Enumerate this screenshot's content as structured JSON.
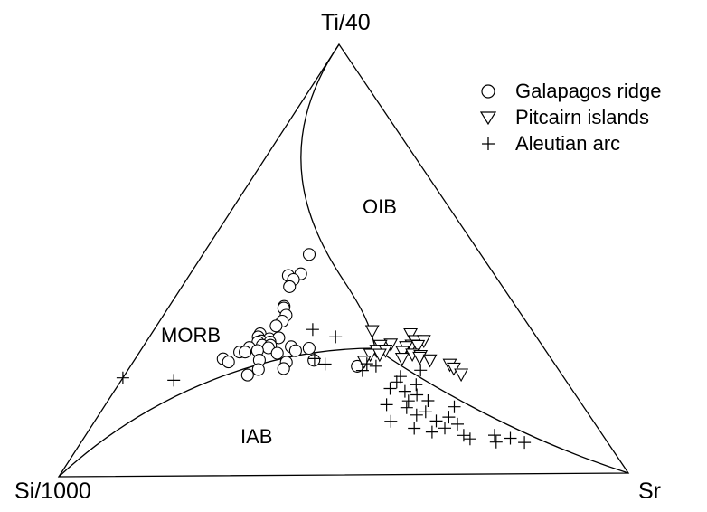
{
  "chart_data": {
    "type": "scatter",
    "subtype": "ternary",
    "vertices": {
      "top": "Ti/40",
      "bottom_left": "Si/1000",
      "bottom_right": "Sr"
    },
    "regions": [
      "OIB",
      "MORB",
      "IAB"
    ],
    "legend_position": "top-right",
    "grid": false,
    "series": [
      {
        "name": "Galapagos ridge",
        "marker": "circle",
        "points": [
          {
            "ti": 0.82,
            "si": 0.48,
            "sr": 0.3
          },
          {
            "ti": 0.77,
            "si": 0.6,
            "sr": 0.29
          },
          {
            "ti": 0.72,
            "si": 0.52,
            "sr": 0.3
          },
          {
            "ti": 0.7,
            "si": 0.55,
            "sr": 0.29
          },
          {
            "ti": 0.67,
            "si": 0.57,
            "sr": 0.29
          },
          {
            "ti": 0.6,
            "si": 0.62,
            "sr": 0.31
          },
          {
            "ti": 0.59,
            "si": 0.62,
            "sr": 0.31
          },
          {
            "ti": 0.55,
            "si": 0.61,
            "sr": 0.32
          },
          {
            "ti": 0.53,
            "si": 0.63,
            "sr": 0.32
          },
          {
            "ti": 0.51,
            "si": 0.65,
            "sr": 0.31
          },
          {
            "ti": 0.48,
            "si": 0.7,
            "sr": 0.28
          },
          {
            "ti": 0.47,
            "si": 0.71,
            "sr": 0.28
          },
          {
            "ti": 0.46,
            "si": 0.68,
            "sr": 0.31
          },
          {
            "ti": 0.46,
            "si": 0.65,
            "sr": 0.33
          },
          {
            "ti": 0.45,
            "si": 0.7,
            "sr": 0.29
          },
          {
            "ti": 0.44,
            "si": 0.67,
            "sr": 0.31
          },
          {
            "ti": 0.44,
            "si": 0.7,
            "sr": 0.28
          },
          {
            "ti": 0.42,
            "si": 0.68,
            "sr": 0.29
          },
          {
            "ti": 0.42,
            "si": 0.66,
            "sr": 0.31
          },
          {
            "ti": 0.41,
            "si": 0.71,
            "sr": 0.26
          },
          {
            "ti": 0.4,
            "si": 0.65,
            "sr": 0.3
          },
          {
            "ti": 0.4,
            "si": 0.59,
            "sr": 0.35
          },
          {
            "ti": 0.39,
            "si": 0.73,
            "sr": 0.24
          },
          {
            "ti": 0.38,
            "si": 0.66,
            "sr": 0.27
          },
          {
            "ti": 0.38,
            "si": 0.53,
            "sr": 0.38
          },
          {
            "ti": 0.37,
            "si": 0.68,
            "sr": 0.24
          },
          {
            "ti": 0.37,
            "si": 0.56,
            "sr": 0.35
          },
          {
            "ti": 0.36,
            "si": 0.6,
            "sr": 0.31
          },
          {
            "ti": 0.35,
            "si": 0.74,
            "sr": 0.2
          },
          {
            "ti": 0.34,
            "si": 0.65,
            "sr": 0.28
          },
          {
            "ti": 0.33,
            "si": 0.71,
            "sr": 0.21
          },
          {
            "ti": 0.32,
            "si": 0.57,
            "sr": 0.33
          },
          {
            "ti": 0.32,
            "si": 0.5,
            "sr": 0.38
          },
          {
            "ti": 0.3,
            "si": 0.64,
            "sr": 0.28
          },
          {
            "ti": 0.3,
            "si": 0.58,
            "sr": 0.33
          },
          {
            "ti": 0.29,
            "si": 0.4,
            "sr": 0.46
          },
          {
            "ti": 0.28,
            "si": 0.66,
            "sr": 0.26
          }
        ]
      },
      {
        "name": "Pitcairn islands",
        "marker": "triangle-down",
        "points": [
          {
            "ti": 0.44,
            "si": 0.37,
            "sr": 0.51
          },
          {
            "ti": 0.42,
            "si": 0.28,
            "sr": 0.59
          },
          {
            "ti": 0.4,
            "si": 0.28,
            "sr": 0.61
          },
          {
            "ti": 0.4,
            "si": 0.26,
            "sr": 0.63
          },
          {
            "ti": 0.39,
            "si": 0.34,
            "sr": 0.56
          },
          {
            "ti": 0.38,
            "si": 0.36,
            "sr": 0.53
          },
          {
            "ti": 0.38,
            "si": 0.29,
            "sr": 0.6
          },
          {
            "ti": 0.37,
            "si": 0.3,
            "sr": 0.58
          },
          {
            "ti": 0.37,
            "si": 0.27,
            "sr": 0.6
          },
          {
            "ti": 0.36,
            "si": 0.37,
            "sr": 0.52
          },
          {
            "ti": 0.36,
            "si": 0.35,
            "sr": 0.54
          },
          {
            "ti": 0.35,
            "si": 0.31,
            "sr": 0.57
          },
          {
            "ti": 0.34,
            "si": 0.38,
            "sr": 0.5
          },
          {
            "ti": 0.34,
            "si": 0.36,
            "sr": 0.52
          },
          {
            "ti": 0.34,
            "si": 0.29,
            "sr": 0.59
          },
          {
            "ti": 0.33,
            "si": 0.27,
            "sr": 0.6
          },
          {
            "ti": 0.32,
            "si": 0.31,
            "sr": 0.56
          },
          {
            "ti": 0.32,
            "si": 0.27,
            "sr": 0.59
          },
          {
            "ti": 0.31,
            "si": 0.39,
            "sr": 0.48
          },
          {
            "ti": 0.31,
            "si": 0.25,
            "sr": 0.61
          },
          {
            "ti": 0.29,
            "si": 0.21,
            "sr": 0.64
          },
          {
            "ti": 0.27,
            "si": 0.2,
            "sr": 0.63
          },
          {
            "ti": 0.25,
            "si": 0.19,
            "sr": 0.64
          }
        ]
      },
      {
        "name": "Aleutian arc",
        "marker": "plus",
        "points": [
          {
            "ti": 0.46,
            "si": 0.52,
            "sr": 0.38
          },
          {
            "ti": 0.42,
            "si": 0.46,
            "sr": 0.43
          },
          {
            "ti": 0.36,
            "si": 0.55,
            "sr": 0.42
          },
          {
            "ti": 0.34,
            "si": 0.53,
            "sr": 0.45
          },
          {
            "ti": 0.33,
            "si": 0.42,
            "sr": 0.53
          },
          {
            "ti": 0.32,
            "si": 0.4,
            "sr": 0.55
          },
          {
            "ti": 0.31,
            "si": 0.44,
            "sr": 0.53
          },
          {
            "ti": 0.3,
            "si": 0.3,
            "sr": 0.64
          },
          {
            "ti": 0.28,
            "si": 0.35,
            "sr": 0.6
          },
          {
            "ti": 0.26,
            "si": 0.36,
            "sr": 0.59
          },
          {
            "ti": 0.25,
            "si": 0.32,
            "sr": 0.63
          },
          {
            "ti": 0.24,
            "si": 0.38,
            "sr": 0.58
          },
          {
            "ti": 0.23,
            "si": 0.35,
            "sr": 0.61
          },
          {
            "ti": 0.22,
            "si": 0.33,
            "sr": 0.64
          },
          {
            "ti": 0.2,
            "si": 0.35,
            "sr": 0.62
          },
          {
            "ti": 0.2,
            "si": 0.31,
            "sr": 0.66
          },
          {
            "ti": 0.19,
            "si": 0.4,
            "sr": 0.58
          },
          {
            "ti": 0.18,
            "si": 0.36,
            "sr": 0.62
          },
          {
            "ti": 0.18,
            "si": 0.26,
            "sr": 0.71
          },
          {
            "ti": 0.17,
            "si": 0.33,
            "sr": 0.67
          },
          {
            "ti": 0.16,
            "si": 0.35,
            "sr": 0.65
          },
          {
            "ti": 0.15,
            "si": 0.28,
            "sr": 0.7
          },
          {
            "ti": 0.14,
            "si": 0.4,
            "sr": 0.59
          },
          {
            "ti": 0.14,
            "si": 0.31,
            "sr": 0.68
          },
          {
            "ti": 0.13,
            "si": 0.27,
            "sr": 0.72
          },
          {
            "ti": 0.12,
            "si": 0.36,
            "sr": 0.64
          },
          {
            "ti": 0.12,
            "si": 0.3,
            "sr": 0.7
          },
          {
            "ti": 0.11,
            "si": 0.33,
            "sr": 0.68
          },
          {
            "ti": 0.1,
            "si": 0.27,
            "sr": 0.74
          },
          {
            "ti": 0.1,
            "si": 0.21,
            "sr": 0.8
          },
          {
            "ti": 0.09,
            "si": 0.26,
            "sr": 0.75
          },
          {
            "ti": 0.09,
            "si": 0.18,
            "sr": 0.82
          },
          {
            "ti": 0.08,
            "si": 0.21,
            "sr": 0.79
          },
          {
            "ti": 0.08,
            "si": 0.16,
            "sr": 0.86
          },
          {
            "ti": 0.24,
            "si": 0.74,
            "sr": 0.1
          },
          {
            "ti": 0.24,
            "si": 0.81,
            "sr": 0.0
          }
        ]
      }
    ]
  }
}
